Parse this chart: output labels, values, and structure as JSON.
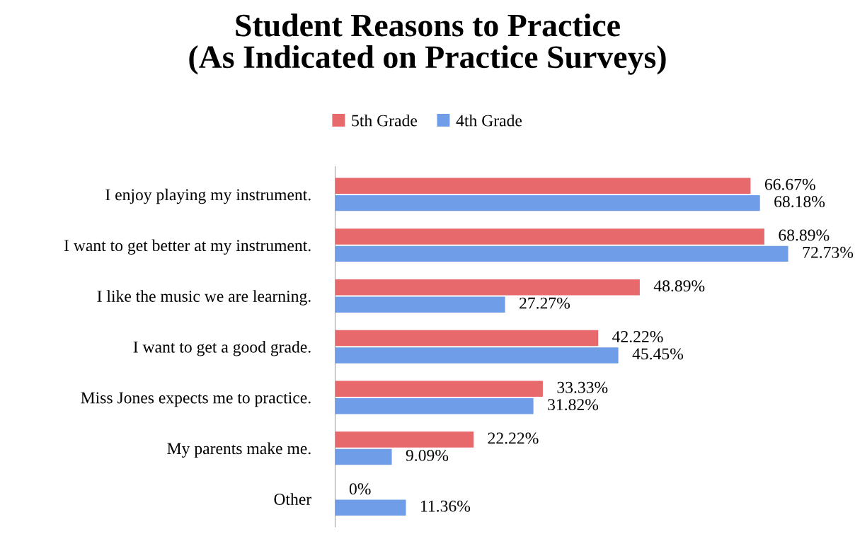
{
  "chart_data": {
    "type": "bar",
    "orientation": "horizontal",
    "title": "Student Reasons to Practice\n(As Indicated on Practice Surveys)",
    "categories": [
      "I enjoy playing my instrument.",
      "I want to get better at my instrument.",
      "I like the music we are learning.",
      "I want to get a good grade.",
      "Miss Jones expects me to practice.",
      "My parents make me.",
      "Other"
    ],
    "series": [
      {
        "name": "5th Grade",
        "color": "#e8696b",
        "values": [
          66.67,
          68.89,
          48.89,
          42.22,
          33.33,
          22.22,
          0
        ],
        "value_labels": [
          "66.67%",
          "68.89%",
          "48.89%",
          "42.22%",
          "33.33%",
          "22.22%",
          "0%"
        ]
      },
      {
        "name": "4th Grade",
        "color": "#6f9de8",
        "values": [
          68.18,
          72.73,
          27.27,
          45.45,
          31.82,
          9.09,
          11.36
        ],
        "value_labels": [
          "68.18%",
          "72.73%",
          "27.27%",
          "45.45%",
          "31.82%",
          "9.09%",
          "11.36%"
        ]
      }
    ],
    "legend": "top",
    "tick_labels": "y",
    "grid": false
  }
}
